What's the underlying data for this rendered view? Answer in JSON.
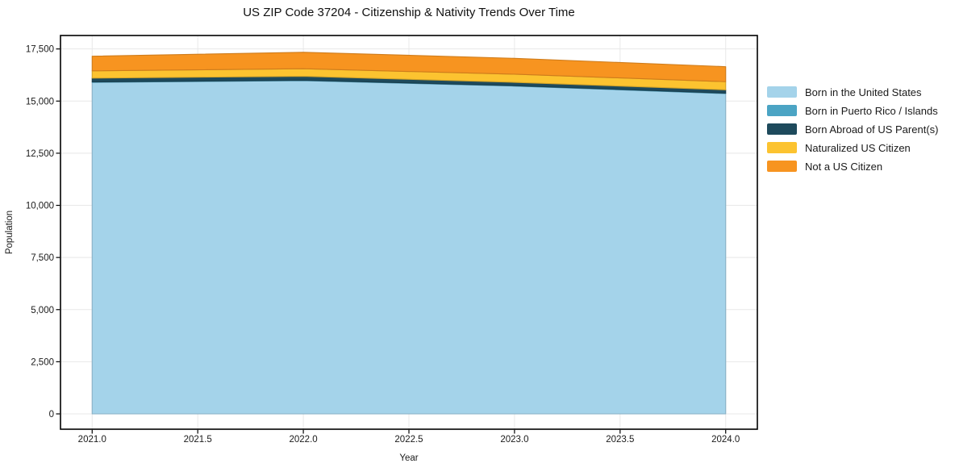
{
  "chart_data": {
    "type": "area",
    "stacked": true,
    "title": "US ZIP Code 37204 - Citizenship & Nativity Trends Over Time",
    "xlabel": "Year",
    "ylabel": "Population",
    "x": [
      2021,
      2022,
      2023,
      2024
    ],
    "series": [
      {
        "name": "Born in the United States",
        "color": "#a4d3ea",
        "values": [
          15900,
          15980,
          15720,
          15360
        ]
      },
      {
        "name": "Born in Puerto Rico / Islands",
        "color": "#4ba4c4",
        "values": [
          20,
          20,
          20,
          20
        ]
      },
      {
        "name": "Born Abroad of US Parent(s)",
        "color": "#1e4a5c",
        "values": [
          180,
          190,
          160,
          160
        ]
      },
      {
        "name": "Naturalized US Citizen",
        "color": "#fcc330",
        "values": [
          350,
          360,
          390,
          390
        ]
      },
      {
        "name": "Not a US Citizen",
        "color": "#f79420",
        "values": [
          700,
          790,
          760,
          720
        ]
      }
    ],
    "xticks": {
      "values": [
        2021,
        2021.5,
        2022,
        2022.5,
        2023,
        2023.5,
        2024
      ],
      "labels": [
        "2021.0",
        "2021.5",
        "2022.0",
        "2022.5",
        "2023.0",
        "2023.5",
        "2024.0"
      ]
    },
    "yticks": {
      "values": [
        0,
        2500,
        5000,
        7500,
        10000,
        12500,
        15000,
        17500
      ],
      "labels": [
        "0",
        "2,500",
        "5,000",
        "7,500",
        "10,000",
        "12,500",
        "15,000",
        "17,500"
      ]
    },
    "xlim": [
      2020.85,
      2024.15
    ],
    "ylim": [
      -735,
      18145
    ],
    "grid": true,
    "legend_position": "right",
    "colors": {
      "grid": "#e8e8e8",
      "spine": "#000000",
      "text": "#1a1a1a",
      "background": "#ffffff"
    }
  }
}
